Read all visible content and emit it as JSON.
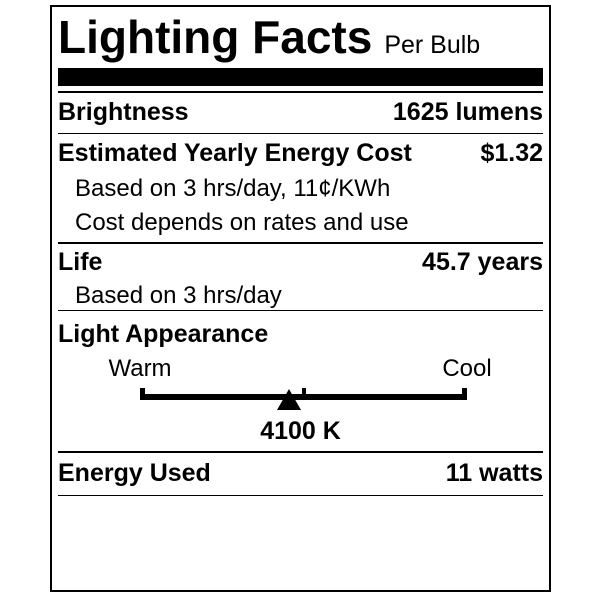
{
  "colors": {
    "ink": "#000000",
    "paper": "#ffffff"
  },
  "label": {
    "title": "Lighting Facts",
    "per_unit": "Per Bulb",
    "brightness": {
      "name": "Brightness",
      "value": "1625 lumens"
    },
    "energy_cost": {
      "name": "Estimated Yearly Energy Cost",
      "value": "$1.32",
      "note_basis": "Based on 3 hrs/day, 11¢/KWh",
      "note_disclaimer": "Cost depends on rates and use"
    },
    "life": {
      "name": "Life",
      "value": "45.7 years",
      "note_basis": "Based on 3 hrs/day"
    },
    "light_appearance": {
      "name": "Light Appearance",
      "warm": "Warm",
      "cool": "Cool",
      "color_temperature": "4100 K",
      "marker_position_pct": 45.6
    },
    "energy_used": {
      "name": "Energy Used",
      "value": "11 watts"
    }
  }
}
